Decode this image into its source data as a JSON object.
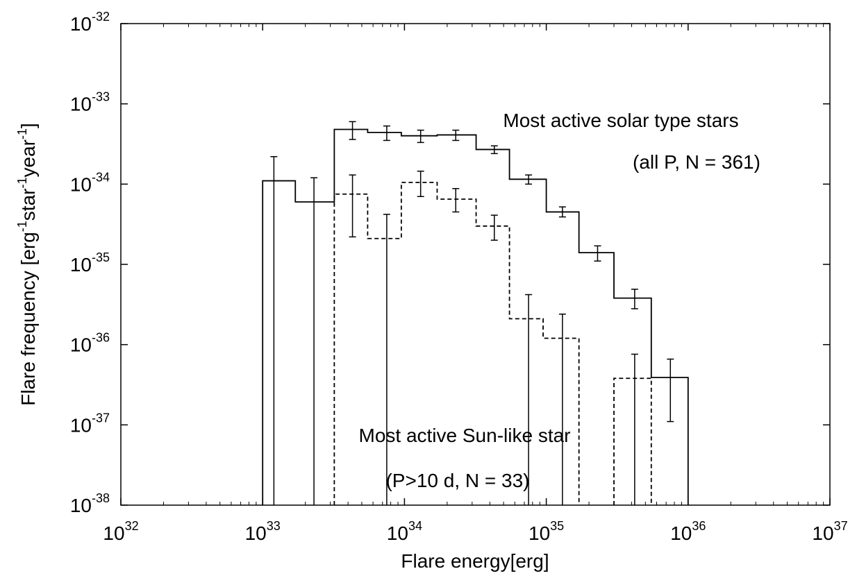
{
  "chart_data": {
    "type": "histogram",
    "title": "",
    "xlabel": "Flare energy[erg]",
    "ylabel": "Flare frequency [erg-1star-1year-1]",
    "ylabel_parts": {
      "prefix": "Flare frequency [erg",
      "sup1": "-1",
      "mid1": "star",
      "sup2": "-1",
      "mid2": "year",
      "sup3": "-1",
      "suffix": "]"
    },
    "xscale": "log",
    "yscale": "log",
    "xlim": [
      1e+32,
      1e+37
    ],
    "ylim": [
      1e-38,
      1e-32
    ],
    "x_ticks": [
      {
        "base": "10",
        "exp": "32"
      },
      {
        "base": "10",
        "exp": "33"
      },
      {
        "base": "10",
        "exp": "34"
      },
      {
        "base": "10",
        "exp": "35"
      },
      {
        "base": "10",
        "exp": "36"
      },
      {
        "base": "10",
        "exp": "37"
      }
    ],
    "y_ticks": [
      {
        "base": "10",
        "exp": "-32"
      },
      {
        "base": "10",
        "exp": "-33"
      },
      {
        "base": "10",
        "exp": "-34"
      },
      {
        "base": "10",
        "exp": "-35"
      },
      {
        "base": "10",
        "exp": "-36"
      },
      {
        "base": "10",
        "exp": "-37"
      },
      {
        "base": "10",
        "exp": "-38"
      }
    ],
    "grid": false,
    "series": [
      {
        "name": "Most active solar type stars (all P, N = 361)",
        "line_style": "solid",
        "bins": [
          {
            "x0": 1e+33,
            "x1": 1.7e+33,
            "y": 1.1e-34,
            "xc": 1.2e+33,
            "err_lo": 1e-38,
            "err_hi": 2.2e-34
          },
          {
            "x0": 1.7e+33,
            "x1": 3.2e+33,
            "y": 6e-35,
            "xc": 2.3e+33,
            "err_lo": 1e-38,
            "err_hi": 1.2e-34
          },
          {
            "x0": 3.2e+33,
            "x1": 5.5e+33,
            "y": 4.8e-34,
            "xc": 4.3e+33,
            "err_lo": 3.6e-34,
            "err_hi": 6e-34
          },
          {
            "x0": 5.5e+33,
            "x1": 9.5e+33,
            "y": 4.4e-34,
            "xc": 7.5e+33,
            "err_lo": 3.5e-34,
            "err_hi": 5.3e-34
          },
          {
            "x0": 9.5e+33,
            "x1": 1.7e+34,
            "y": 4e-34,
            "xc": 1.3e+34,
            "err_lo": 3.3e-34,
            "err_hi": 4.7e-34
          },
          {
            "x0": 1.7e+34,
            "x1": 3.2e+34,
            "y": 4.1e-34,
            "xc": 2.3e+34,
            "err_lo": 3.5e-34,
            "err_hi": 4.7e-34
          },
          {
            "x0": 3.2e+34,
            "x1": 5.5e+34,
            "y": 2.7e-34,
            "xc": 4.3e+34,
            "err_lo": 2.4e-34,
            "err_hi": 3e-34
          },
          {
            "x0": 5.5e+34,
            "x1": 1e+35,
            "y": 1.15e-34,
            "xc": 7.5e+34,
            "err_lo": 1e-34,
            "err_hi": 1.3e-34
          },
          {
            "x0": 1e+35,
            "x1": 1.7e+35,
            "y": 4.5e-35,
            "xc": 1.3e+35,
            "err_lo": 3.9e-35,
            "err_hi": 5.2e-35
          },
          {
            "x0": 1.7e+35,
            "x1": 3e+35,
            "y": 1.4e-35,
            "xc": 2.3e+35,
            "err_lo": 1.1e-35,
            "err_hi": 1.7e-35
          },
          {
            "x0": 3e+35,
            "x1": 5.5e+35,
            "y": 3.8e-36,
            "xc": 4.2e+35,
            "err_lo": 2.8e-36,
            "err_hi": 4.9e-36
          },
          {
            "x0": 5.5e+35,
            "x1": 1e+36,
            "y": 3.9e-37,
            "xc": 7.5e+35,
            "err_lo": 1.1e-37,
            "err_hi": 6.6e-37
          }
        ]
      },
      {
        "name": "Most active Sun-like star (P>10 d, N = 33)",
        "line_style": "dashed",
        "bins": [
          {
            "x0": 3.2e+33,
            "x1": 5.5e+33,
            "y": 7.5e-35,
            "xc": 4.3e+33,
            "err_lo": 2.2e-35,
            "err_hi": 1.3e-34
          },
          {
            "x0": 5.5e+33,
            "x1": 9.5e+33,
            "y": 2.1e-35,
            "xc": 7.5e+33,
            "err_lo": 1e-38,
            "err_hi": 4.2e-35
          },
          {
            "x0": 9.5e+33,
            "x1": 1.7e+34,
            "y": 1.05e-34,
            "xc": 1.3e+34,
            "err_lo": 7e-35,
            "err_hi": 1.45e-34
          },
          {
            "x0": 1.7e+34,
            "x1": 3.2e+34,
            "y": 6.5e-35,
            "xc": 2.3e+34,
            "err_lo": 4.5e-35,
            "err_hi": 8.8e-35
          },
          {
            "x0": 3.2e+34,
            "x1": 5.5e+34,
            "y": 3e-35,
            "xc": 4.3e+34,
            "err_lo": 2e-35,
            "err_hi": 4.1e-35
          },
          {
            "x0": 5.5e+34,
            "x1": 9.5e+34,
            "y": 2.1e-36,
            "xc": 7.5e+34,
            "err_lo": 1e-38,
            "err_hi": 4.2e-36
          },
          {
            "x0": 9.5e+34,
            "x1": 1.7e+35,
            "y": 1.2e-36,
            "xc": 1.3e+35,
            "err_lo": 1e-38,
            "err_hi": 2.4e-36
          },
          {
            "x0": 3e+35,
            "x1": 5.5e+35,
            "y": 3.8e-37,
            "xc": 4.2e+35,
            "err_lo": 1e-38,
            "err_hi": 7.6e-37
          }
        ]
      }
    ],
    "annotations": [
      {
        "id": "solar",
        "line1": "Most active solar type stars",
        "line2": "(all P, N = 361)"
      },
      {
        "id": "sunlike",
        "line1": "Most active Sun-like star",
        "line2": "(P>10 d, N = 33)"
      }
    ]
  }
}
